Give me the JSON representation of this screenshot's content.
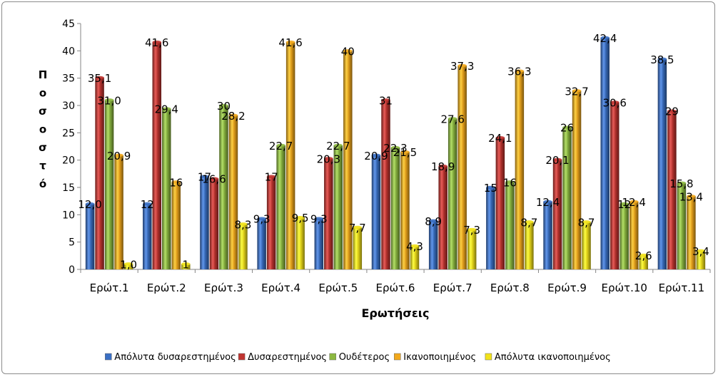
{
  "chart_data": {
    "type": "bar",
    "categories": [
      "Ερώτ.1",
      "Ερώτ.2",
      "Ερώτ.3",
      "Ερώτ.4",
      "Ερώτ.5",
      "Ερώτ.6",
      "Ερώτ.7",
      "Ερώτ.8",
      "Ερώτ.9",
      "Ερώτ.10",
      "Ερώτ.11"
    ],
    "series": [
      {
        "name": "Απόλυτα δυσαρεστημένος",
        "color": "#3a6fc4",
        "values": [
          12.0,
          12,
          17,
          9.3,
          9.3,
          20.9,
          8.9,
          15,
          12.4,
          42.4,
          38.5
        ],
        "labels": [
          "12,0",
          "12",
          "17",
          "9,3",
          "9,3",
          "20,9",
          "8,9",
          "15",
          "12,4",
          "42,4",
          "38,5"
        ]
      },
      {
        "name": "Δυσαρεστημένος",
        "color": "#c03430",
        "values": [
          35.1,
          41.6,
          16.6,
          17,
          20.3,
          31,
          18.9,
          24.1,
          20.1,
          30.6,
          29
        ],
        "labels": [
          "35,1",
          "41,6",
          "16,6",
          "17",
          "20,3",
          "31",
          "18,9",
          "24,1",
          "20,1",
          "30,6",
          "29"
        ]
      },
      {
        "name": "Ουδέτερος",
        "color": "#8cb840",
        "values": [
          31.0,
          29.4,
          30,
          22.7,
          22.7,
          22.3,
          27.6,
          16,
          26,
          12,
          15.8
        ],
        "labels": [
          "31,0",
          "29,4",
          "30",
          "22,7",
          "22,7",
          "22,3",
          "27,6",
          "16",
          "26",
          "12",
          "15,8"
        ]
      },
      {
        "name": "Ικανοποιημένος",
        "color": "#f2a91c",
        "values": [
          20.9,
          16,
          28.2,
          41.6,
          40,
          21.5,
          37.3,
          36.3,
          32.7,
          12.4,
          13.4
        ],
        "labels": [
          "20,9",
          "16",
          "28,2",
          "41,6",
          "40",
          "21,5",
          "37,3",
          "36,3",
          "32,7",
          "12,4",
          "13,4"
        ]
      },
      {
        "name": "Απόλυτα ικανοποιημένος",
        "color": "#f2e21a",
        "values": [
          1.0,
          1,
          8.3,
          9.5,
          7.7,
          4.3,
          7.3,
          8.7,
          8.7,
          2.6,
          3.4
        ],
        "labels": [
          "1,0",
          "1",
          "8,3",
          "9,5",
          "7,7",
          "4,3",
          "7,3",
          "8,7",
          "8,7",
          "2,6",
          "3,4"
        ]
      }
    ],
    "xlabel": "Ερωτήσεις",
    "ylabel": "Ποσοστό",
    "ylim": [
      0,
      45
    ],
    "yticks": [
      "0",
      "5",
      "10",
      "15",
      "20",
      "25",
      "30",
      "35",
      "40",
      "45"
    ],
    "grid": false,
    "legend_position": "bottom"
  }
}
